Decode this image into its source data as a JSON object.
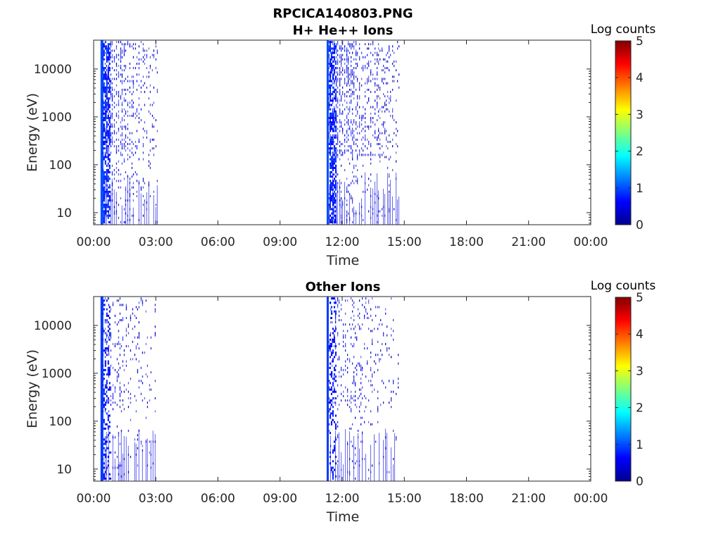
{
  "figure_title": "RPCICA140803.PNG",
  "colorbar": {
    "label": "Log counts",
    "ticks": [
      "0",
      "1",
      "2",
      "3",
      "4",
      "5"
    ],
    "range": [
      0,
      5
    ],
    "colormap": "jet"
  },
  "chart_data": [
    {
      "type": "heatmap",
      "title": "H+ He++ Ions",
      "xlabel": "Time",
      "ylabel": "Energy (eV)",
      "yscale": "log",
      "ylim": [
        5.6,
        40000
      ],
      "xlim": [
        "00:00",
        "24:00"
      ],
      "x_tick_labels": [
        "00:00",
        "03:00",
        "06:00",
        "09:00",
        "12:00",
        "15:00",
        "18:00",
        "21:00",
        "00:00"
      ],
      "y_tick_labels": [
        "10",
        "100",
        "1000",
        "10000"
      ],
      "intervals": [
        {
          "start": "00:20",
          "end": "03:05",
          "max_log_counts": 1.0
        },
        {
          "start": "11:15",
          "end": "14:45",
          "max_log_counts": 1.0
        }
      ]
    },
    {
      "type": "heatmap",
      "title": "Other Ions",
      "xlabel": "Time",
      "ylabel": "Energy (eV)",
      "yscale": "log",
      "ylim": [
        5.6,
        40000
      ],
      "xlim": [
        "00:00",
        "24:00"
      ],
      "x_tick_labels": [
        "00:00",
        "03:00",
        "06:00",
        "09:00",
        "12:00",
        "15:00",
        "18:00",
        "21:00",
        "00:00"
      ],
      "y_tick_labels": [
        "10",
        "100",
        "1000",
        "10000"
      ],
      "intervals": [
        {
          "start": "00:20",
          "end": "03:00",
          "max_log_counts": 0.9
        },
        {
          "start": "11:15",
          "end": "14:45",
          "max_log_counts": 0.9
        }
      ]
    }
  ]
}
